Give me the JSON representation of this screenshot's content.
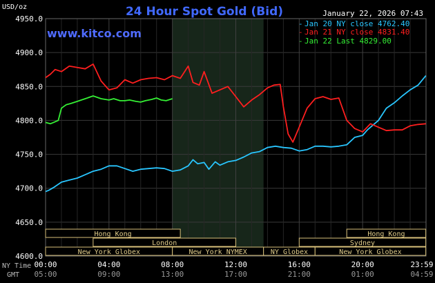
{
  "header": {
    "title": "24 Hour Spot Gold (Bid)",
    "unit": "USD/oz",
    "timestamp": "January 22, 2026 07:43",
    "brand": "www.kitco.com",
    "title_color": "#4169ff",
    "brand_color": "#4f6bff"
  },
  "legend": {
    "items": [
      {
        "label": "Jan 20 NY close 4762.40",
        "color": "#29c6ff"
      },
      {
        "label": "Jan 21 NY close 4831.40",
        "color": "#ff1f1f"
      },
      {
        "label": "Jan 22 Last 4829.00",
        "color": "#35f135"
      }
    ]
  },
  "sessions": {
    "rows": [
      [
        {
          "label": "Hong Kong",
          "start": "00:00",
          "end": "08:30"
        },
        {
          "label": "Hong Kong",
          "start": "19:00",
          "end": "23:59"
        }
      ],
      [
        {
          "label": "London",
          "start": "03:00",
          "end": "12:00"
        },
        {
          "label": "Sydney",
          "start": "16:00",
          "end": "23:59"
        }
      ],
      [
        {
          "label": "New York Globex",
          "start": "00:00",
          "end": "08:00"
        },
        {
          "label": "New York NYMEX",
          "start": "08:00",
          "end": "13:45"
        },
        {
          "label": "NY Globex",
          "start": "13:45",
          "end": "17:00"
        },
        {
          "label": "New York Globex",
          "start": "17:00",
          "end": "23:59"
        }
      ]
    ]
  },
  "x_axis": {
    "row1_label": "NY Time",
    "row2_label": "GMT",
    "ny_ticks": [
      "00:00",
      "04:00",
      "08:00",
      "12:00",
      "16:00",
      "20:00",
      "23:59"
    ],
    "gmt_ticks": [
      "05:00",
      "09:00",
      "13:00",
      "17:00",
      "21:00",
      "01:00",
      "04:59"
    ]
  },
  "chart_data": {
    "type": "line",
    "title": "24 Hour Spot Gold (Bid)",
    "ylabel": "USD/oz",
    "xlabel": "NY Time",
    "ylim": [
      4600,
      4950
    ],
    "xlim_hours": [
      0,
      24
    ],
    "y_ticks": [
      "4950.0",
      "4900.0",
      "4850.0",
      "4800.0",
      "4750.0",
      "4700.0",
      "4650.0",
      "4600.0"
    ],
    "y_tick_values": [
      4950,
      4900,
      4850,
      4800,
      4750,
      4700,
      4650,
      4600
    ],
    "grid": true,
    "legend_position": "top-right",
    "highlight_hours": [
      8.0,
      13.75
    ],
    "series": [
      {
        "name": "Jan 20 NY close 4762.40",
        "color": "#29c6ff",
        "x": [
          0.0,
          0.2,
          0.5,
          1.0,
          1.5,
          2.0,
          2.5,
          3.0,
          3.5,
          4.0,
          4.5,
          5.0,
          5.5,
          6.0,
          6.5,
          7.0,
          7.5,
          8.0,
          8.5,
          9.0,
          9.3,
          9.6,
          10.0,
          10.3,
          10.7,
          11.0,
          11.5,
          12.0,
          12.5,
          13.0,
          13.5,
          14.0,
          14.5,
          15.0,
          15.5,
          16.0,
          16.5,
          17.0,
          17.5,
          18.0,
          18.5,
          19.0,
          19.5,
          20.0,
          20.3,
          20.6,
          21.0,
          21.5,
          22.0,
          22.5,
          23.0,
          23.5,
          23.99
        ],
        "y": [
          4695,
          4697,
          4701,
          4709,
          4712,
          4715,
          4720,
          4725,
          4728,
          4733,
          4733,
          4729,
          4725,
          4728,
          4729,
          4730,
          4729,
          4725,
          4727,
          4733,
          4742,
          4736,
          4738,
          4728,
          4739,
          4734,
          4739,
          4741,
          4746,
          4752,
          4754,
          4760,
          4762,
          4760,
          4759,
          4755,
          4757,
          4762,
          4762,
          4761,
          4762,
          4764,
          4775,
          4778,
          4786,
          4792,
          4800,
          4818,
          4826,
          4836,
          4845,
          4852,
          4866
        ]
      },
      {
        "name": "Jan 21 NY close 4831.40",
        "color": "#ff1f1f",
        "x": [
          0.0,
          0.3,
          0.6,
          1.0,
          1.5,
          2.0,
          2.5,
          3.0,
          3.5,
          4.0,
          4.5,
          5.0,
          5.5,
          6.0,
          6.5,
          7.0,
          7.5,
          8.0,
          8.5,
          9.0,
          9.3,
          9.7,
          10.0,
          10.5,
          11.0,
          11.5,
          12.0,
          12.5,
          13.0,
          13.5,
          14.0,
          14.4,
          14.8,
          15.0,
          15.3,
          15.6,
          16.0,
          16.5,
          17.0,
          17.5,
          18.0,
          18.5,
          19.0,
          19.5,
          20.0,
          20.5,
          21.0,
          21.5,
          22.0,
          22.5,
          23.0,
          23.5,
          23.99
        ],
        "y": [
          4863,
          4868,
          4875,
          4872,
          4880,
          4878,
          4876,
          4883,
          4858,
          4845,
          4848,
          4860,
          4855,
          4860,
          4862,
          4863,
          4860,
          4866,
          4862,
          4880,
          4856,
          4852,
          4872,
          4840,
          4845,
          4850,
          4835,
          4820,
          4830,
          4838,
          4848,
          4852,
          4853,
          4820,
          4780,
          4768,
          4790,
          4818,
          4832,
          4835,
          4831,
          4833,
          4800,
          4788,
          4783,
          4795,
          4790,
          4785,
          4786,
          4786,
          4792,
          4794,
          4795
        ]
      },
      {
        "name": "Jan 22 Last 4829.00",
        "color": "#35f135",
        "x": [
          0.0,
          0.3,
          0.5,
          0.8,
          1.0,
          1.3,
          1.6,
          2.0,
          2.5,
          3.0,
          3.5,
          4.0,
          4.3,
          4.7,
          5.0,
          5.3,
          5.7,
          6.0,
          6.3,
          6.7,
          7.0,
          7.3,
          7.6,
          8.0
        ],
        "y": [
          4797,
          4795,
          4797,
          4800,
          4818,
          4823,
          4825,
          4828,
          4832,
          4836,
          4832,
          4830,
          4832,
          4829,
          4829,
          4830,
          4828,
          4827,
          4829,
          4831,
          4833,
          4830,
          4829,
          4832
        ]
      }
    ]
  }
}
